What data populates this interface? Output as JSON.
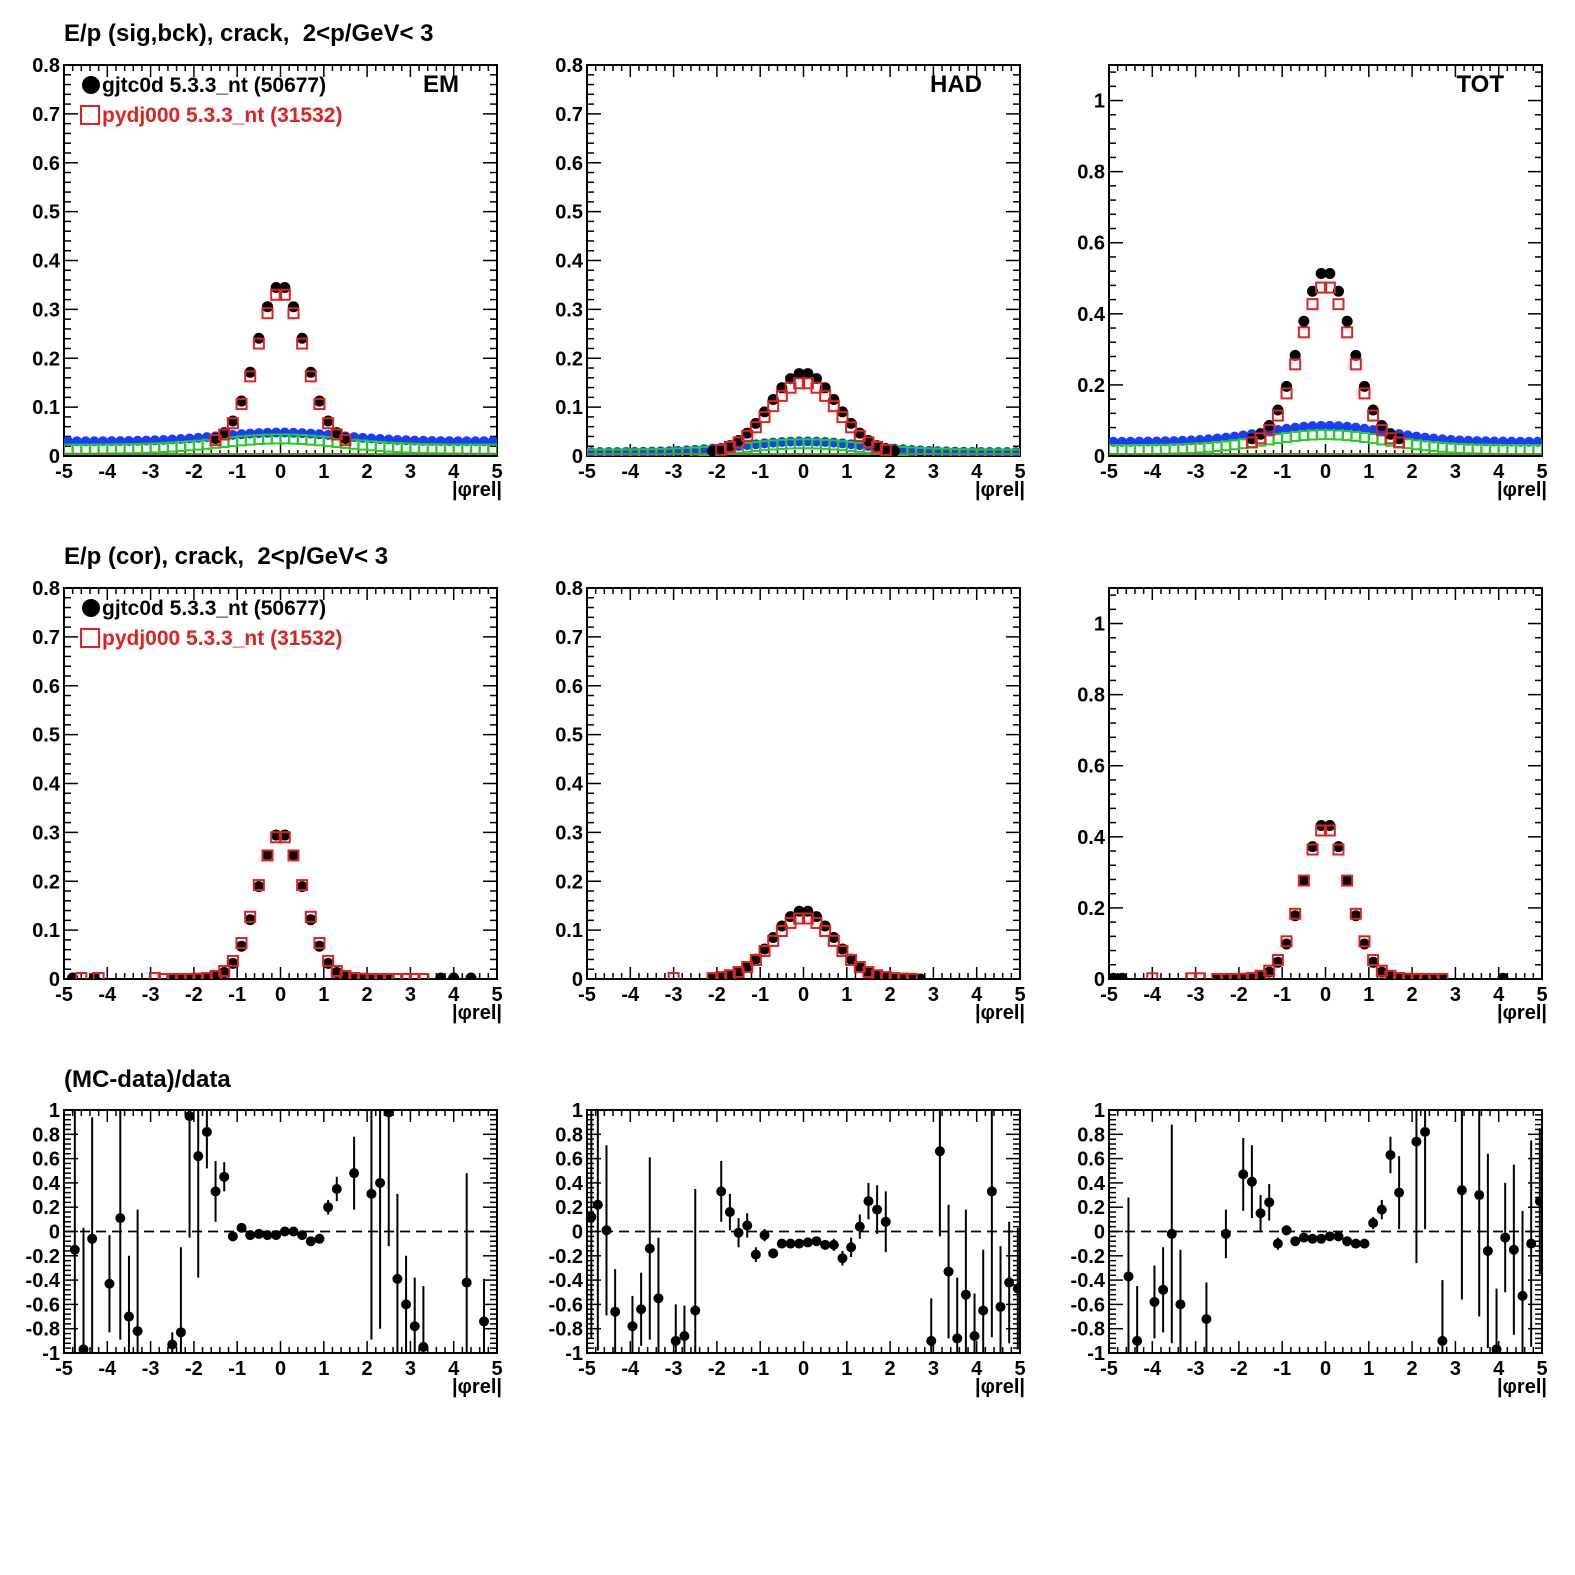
{
  "titles": {
    "row1": "E/p (sig,bck), crack,  2<p/GeV< 3",
    "row2": "E/p (cor), crack,  2<p/GeV< 3",
    "row3": "(MC-data)/data"
  },
  "legend": {
    "data_label": "gjtc0d 5.3.3_nt (50677)",
    "mc_label": "pydj000 5.3.3_nt (31532)"
  },
  "panel_labels": {
    "em": "EM",
    "had": "HAD",
    "tot": "TOT"
  },
  "xlabel": "|φrel|",
  "colors": {
    "data": "#000000",
    "mc": "#dd2222",
    "bck_data": "#1a3cff",
    "bck_mc": "#22cc22"
  },
  "chart_data": [
    {
      "type": "scatter",
      "panel": "EM",
      "row": "sig,bck",
      "xlim": [
        -5,
        5
      ],
      "ylim": [
        0,
        0.8
      ],
      "yticks": [
        0,
        0.1,
        0.2,
        0.3,
        0.4,
        0.5,
        0.6,
        0.7,
        0.8
      ],
      "series": [
        {
          "name": "gjtc0d 5.3.3_nt (50677)",
          "peak": 0.35,
          "sigma": 0.55,
          "base": 0.028
        },
        {
          "name": "pydj000 5.3.3_nt (31532)",
          "peak": 0.335,
          "sigma": 0.55,
          "base": 0.025
        },
        {
          "peak": 0.048,
          "sigma": 1.4,
          "base": 0.03
        },
        {
          "peak": 0.035,
          "sigma": 1.4,
          "base": 0.014
        }
      ]
    },
    {
      "type": "scatter",
      "panel": "HAD",
      "row": "sig,bck",
      "xlim": [
        -5,
        5
      ],
      "ylim": [
        0,
        0.8
      ],
      "yticks": [
        0,
        0.1,
        0.2,
        0.3,
        0.4,
        0.5,
        0.6,
        0.7,
        0.8
      ],
      "series": [
        {
          "name": "gjtc0d 5.3.3_nt (50677)",
          "peak": 0.17,
          "sigma": 0.78,
          "base": 0.006
        },
        {
          "name": "pydj000 5.3.3_nt (31532)",
          "peak": 0.15,
          "sigma": 0.78,
          "base": 0.005
        },
        {
          "peak": 0.03,
          "sigma": 1.4,
          "base": 0.008
        },
        {
          "peak": 0.025,
          "sigma": 1.4,
          "base": 0.004
        }
      ]
    },
    {
      "type": "scatter",
      "panel": "TOT",
      "row": "sig,bck",
      "xlim": [
        -5,
        5
      ],
      "ylim": [
        0,
        1.1
      ],
      "yticks": [
        0,
        0.2,
        0.4,
        0.6,
        0.8,
        1
      ],
      "series": [
        {
          "name": "gjtc0d 5.3.3_nt (50677)",
          "peak": 0.52,
          "sigma": 0.6,
          "base": 0.04
        },
        {
          "name": "pydj000 5.3.3_nt (31532)",
          "peak": 0.48,
          "sigma": 0.6,
          "base": 0.03
        },
        {
          "peak": 0.085,
          "sigma": 1.4,
          "base": 0.04
        },
        {
          "peak": 0.06,
          "sigma": 1.4,
          "base": 0.018
        }
      ]
    },
    {
      "type": "scatter",
      "panel": "EM",
      "row": "cor",
      "xlim": [
        -5,
        5
      ],
      "ylim": [
        0,
        0.8
      ],
      "yticks": [
        0,
        0.1,
        0.2,
        0.3,
        0.4,
        0.5,
        0.6,
        0.7,
        0.8
      ],
      "series": [
        {
          "name": "gjtc0d 5.3.3_nt (50677)",
          "peak": 0.3,
          "sigma": 0.52,
          "xmin": -2.5,
          "xmax": 2.5,
          "extra_x": [
            -4.8,
            -4.3,
            3.7,
            4.0,
            4.4
          ]
        },
        {
          "name": "pydj000 5.3.3_nt (31532)",
          "peak": 0.295,
          "sigma": 0.54,
          "xmin": -2.9,
          "xmax": 3.4,
          "extra_x": [
            -4.6,
            -4.2,
            -2.9
          ]
        }
      ]
    },
    {
      "type": "scatter",
      "panel": "HAD",
      "row": "cor",
      "xlim": [
        -5,
        5
      ],
      "ylim": [
        0,
        0.8
      ],
      "yticks": [
        0,
        0.1,
        0.2,
        0.3,
        0.4,
        0.5,
        0.6,
        0.7,
        0.8
      ],
      "series": [
        {
          "name": "gjtc0d 5.3.3_nt (50677)",
          "peak": 0.14,
          "sigma": 0.7,
          "xmin": -2.3,
          "xmax": 2.7,
          "extra_x": []
        },
        {
          "name": "pydj000 5.3.3_nt (31532)",
          "peak": 0.125,
          "sigma": 0.72,
          "xmin": -2.3,
          "xmax": 2.5,
          "extra_x": [
            -3.0
          ]
        }
      ]
    },
    {
      "type": "scatter",
      "panel": "TOT",
      "row": "cor",
      "xlim": [
        -5,
        5
      ],
      "ylim": [
        0,
        1.1
      ],
      "yticks": [
        0,
        0.2,
        0.4,
        0.6,
        0.8,
        1
      ],
      "series": [
        {
          "name": "gjtc0d 5.3.3_nt (50677)",
          "peak": 0.44,
          "sigma": 0.52,
          "xmin": -2.5,
          "xmax": 2.9,
          "extra_x": [
            -4.9,
            -4.7,
            4.1
          ]
        },
        {
          "name": "pydj000 5.3.3_nt (31532)",
          "peak": 0.425,
          "sigma": 0.54,
          "xmin": -2.5,
          "xmax": 2.7,
          "extra_x": [
            -4.0,
            -3.1,
            -2.9
          ]
        }
      ]
    },
    {
      "type": "scatter",
      "panel": "EM",
      "row": "ratio",
      "xlim": [
        -5,
        5
      ],
      "ylim": [
        -1,
        1
      ],
      "yticks": [
        -1,
        -0.8,
        -0.6,
        -0.4,
        -0.2,
        0,
        0.2,
        0.4,
        0.6,
        0.8,
        1
      ],
      "reference_line": 0,
      "points": [
        [
          -4.75,
          -0.15,
          1.15
        ],
        [
          -4.55,
          -0.97,
          1.0
        ],
        [
          -4.35,
          -0.06,
          1.0
        ],
        [
          -3.95,
          -0.43,
          0.4
        ],
        [
          -3.7,
          0.11,
          1.0
        ],
        [
          -3.5,
          -0.7,
          0.5
        ],
        [
          -3.3,
          -0.82,
          1.0
        ],
        [
          -2.5,
          -0.93,
          0.1
        ],
        [
          -2.3,
          -0.83,
          0.7
        ],
        [
          -2.1,
          0.95,
          1.0
        ],
        [
          -1.9,
          0.62,
          1.0
        ],
        [
          -1.7,
          0.82,
          0.3
        ],
        [
          -1.5,
          0.33,
          0.25
        ],
        [
          -1.3,
          0.45,
          0.12
        ],
        [
          -1.1,
          -0.04,
          0.04
        ],
        [
          -0.9,
          0.03,
          0.03
        ],
        [
          -0.7,
          -0.03,
          0.02
        ],
        [
          -0.5,
          -0.02,
          0.02
        ],
        [
          -0.3,
          -0.03,
          0.02
        ],
        [
          -0.1,
          -0.03,
          0.02
        ],
        [
          0.1,
          0.0,
          0.02
        ],
        [
          0.3,
          0.0,
          0.02
        ],
        [
          0.5,
          -0.03,
          0.02
        ],
        [
          0.7,
          -0.08,
          0.03
        ],
        [
          0.9,
          -0.06,
          0.03
        ],
        [
          1.1,
          0.2,
          0.06
        ],
        [
          1.3,
          0.35,
          0.1
        ],
        [
          1.7,
          0.48,
          0.3
        ],
        [
          2.1,
          0.31,
          1.2
        ],
        [
          2.3,
          0.4,
          1.2
        ],
        [
          2.5,
          0.98,
          1.1
        ],
        [
          2.7,
          -0.39,
          0.7
        ],
        [
          2.9,
          -0.6,
          0.4
        ],
        [
          3.1,
          -0.78,
          0.4
        ],
        [
          3.3,
          -0.95,
          0.5
        ],
        [
          4.3,
          -0.42,
          0.9
        ],
        [
          4.7,
          -0.74,
          0.35
        ]
      ]
    },
    {
      "type": "scatter",
      "panel": "HAD",
      "row": "ratio",
      "xlim": [
        -5,
        5
      ],
      "ylim": [
        -1,
        1
      ],
      "yticks": [
        -1,
        -0.8,
        -0.6,
        -0.4,
        -0.2,
        0,
        0.2,
        0.4,
        0.6,
        0.8,
        1
      ],
      "reference_line": 0,
      "points": [
        [
          -4.9,
          0.12,
          1.0
        ],
        [
          -4.75,
          0.22,
          1.2
        ],
        [
          -4.55,
          0.01,
          0.7
        ],
        [
          -4.35,
          -0.66,
          0.35
        ],
        [
          -3.95,
          -0.78,
          0.25
        ],
        [
          -3.75,
          -0.64,
          0.3
        ],
        [
          -3.55,
          -0.14,
          0.75
        ],
        [
          -3.35,
          -0.55,
          0.5
        ],
        [
          -2.95,
          -0.9,
          0.3
        ],
        [
          -2.75,
          -0.86,
          0.25
        ],
        [
          -2.5,
          -0.65,
          1.0
        ],
        [
          -1.9,
          0.33,
          0.25
        ],
        [
          -1.7,
          0.16,
          0.15
        ],
        [
          -1.5,
          -0.01,
          0.12
        ],
        [
          -1.3,
          0.05,
          0.1
        ],
        [
          -1.1,
          -0.19,
          0.06
        ],
        [
          -0.9,
          -0.03,
          0.05
        ],
        [
          -0.7,
          -0.18,
          0.04
        ],
        [
          -0.5,
          -0.1,
          0.03
        ],
        [
          -0.3,
          -0.1,
          0.03
        ],
        [
          -0.1,
          -0.1,
          0.03
        ],
        [
          0.1,
          -0.09,
          0.03
        ],
        [
          0.3,
          -0.08,
          0.03
        ],
        [
          0.5,
          -0.11,
          0.04
        ],
        [
          0.7,
          -0.11,
          0.05
        ],
        [
          0.9,
          -0.22,
          0.06
        ],
        [
          1.1,
          -0.13,
          0.08
        ],
        [
          1.3,
          0.04,
          0.1
        ],
        [
          1.5,
          0.25,
          0.15
        ],
        [
          1.7,
          0.18,
          0.2
        ],
        [
          1.9,
          0.08,
          0.25
        ],
        [
          2.95,
          -0.9,
          0.35
        ],
        [
          3.15,
          0.66,
          0.7
        ],
        [
          3.35,
          -0.33,
          0.55
        ],
        [
          3.55,
          -0.88,
          0.5
        ],
        [
          3.75,
          -0.52,
          0.7
        ],
        [
          3.95,
          -0.86,
          0.35
        ],
        [
          4.15,
          -0.65,
          0.5
        ],
        [
          4.35,
          0.33,
          1.2
        ],
        [
          4.55,
          -0.62,
          0.5
        ],
        [
          4.75,
          -0.42,
          0.5
        ],
        [
          4.95,
          -0.47,
          0.5
        ]
      ]
    },
    {
      "type": "scatter",
      "panel": "TOT",
      "row": "ratio",
      "xlim": [
        -5,
        5
      ],
      "ylim": [
        -1,
        1
      ],
      "yticks": [
        -1,
        -0.8,
        -0.6,
        -0.4,
        -0.2,
        0,
        0.2,
        0.4,
        0.6,
        0.8,
        1
      ],
      "reference_line": 0,
      "points": [
        [
          -4.55,
          -0.37,
          0.65
        ],
        [
          -4.35,
          -0.9,
          0.45
        ],
        [
          -3.95,
          -0.58,
          0.3
        ],
        [
          -3.75,
          -0.48,
          0.35
        ],
        [
          -3.55,
          -0.02,
          0.9
        ],
        [
          -3.35,
          -0.6,
          0.45
        ],
        [
          -2.75,
          -0.72,
          0.3
        ],
        [
          -2.3,
          -0.02,
          0.2
        ],
        [
          -1.9,
          0.47,
          0.3
        ],
        [
          -1.7,
          0.41,
          0.3
        ],
        [
          -1.5,
          0.15,
          0.15
        ],
        [
          -1.3,
          0.24,
          0.15
        ],
        [
          -1.1,
          -0.1,
          0.05
        ],
        [
          -0.9,
          0.01,
          0.04
        ],
        [
          -0.7,
          -0.08,
          0.03
        ],
        [
          -0.5,
          -0.05,
          0.02
        ],
        [
          -0.3,
          -0.06,
          0.02
        ],
        [
          -0.1,
          -0.06,
          0.02
        ],
        [
          0.1,
          -0.04,
          0.02
        ],
        [
          0.3,
          -0.04,
          0.02
        ],
        [
          0.5,
          -0.08,
          0.03
        ],
        [
          0.7,
          -0.1,
          0.03
        ],
        [
          0.9,
          -0.1,
          0.04
        ],
        [
          1.1,
          0.07,
          0.05
        ],
        [
          1.3,
          0.18,
          0.08
        ],
        [
          1.5,
          0.63,
          0.15
        ],
        [
          1.7,
          0.32,
          0.3
        ],
        [
          2.1,
          0.74,
          1.0
        ],
        [
          2.3,
          0.82,
          0.8
        ],
        [
          2.7,
          -0.9,
          0.5
        ],
        [
          3.15,
          0.34,
          0.9
        ],
        [
          3.55,
          0.3,
          1.0
        ],
        [
          3.75,
          -0.16,
          0.8
        ],
        [
          3.95,
          -0.97,
          0.5
        ],
        [
          4.15,
          -0.05,
          0.45
        ],
        [
          4.35,
          -0.15,
          0.7
        ],
        [
          4.55,
          -0.53,
          0.7
        ],
        [
          4.75,
          -0.1,
          0.85
        ],
        [
          4.95,
          0.25,
          0.6
        ]
      ]
    }
  ]
}
